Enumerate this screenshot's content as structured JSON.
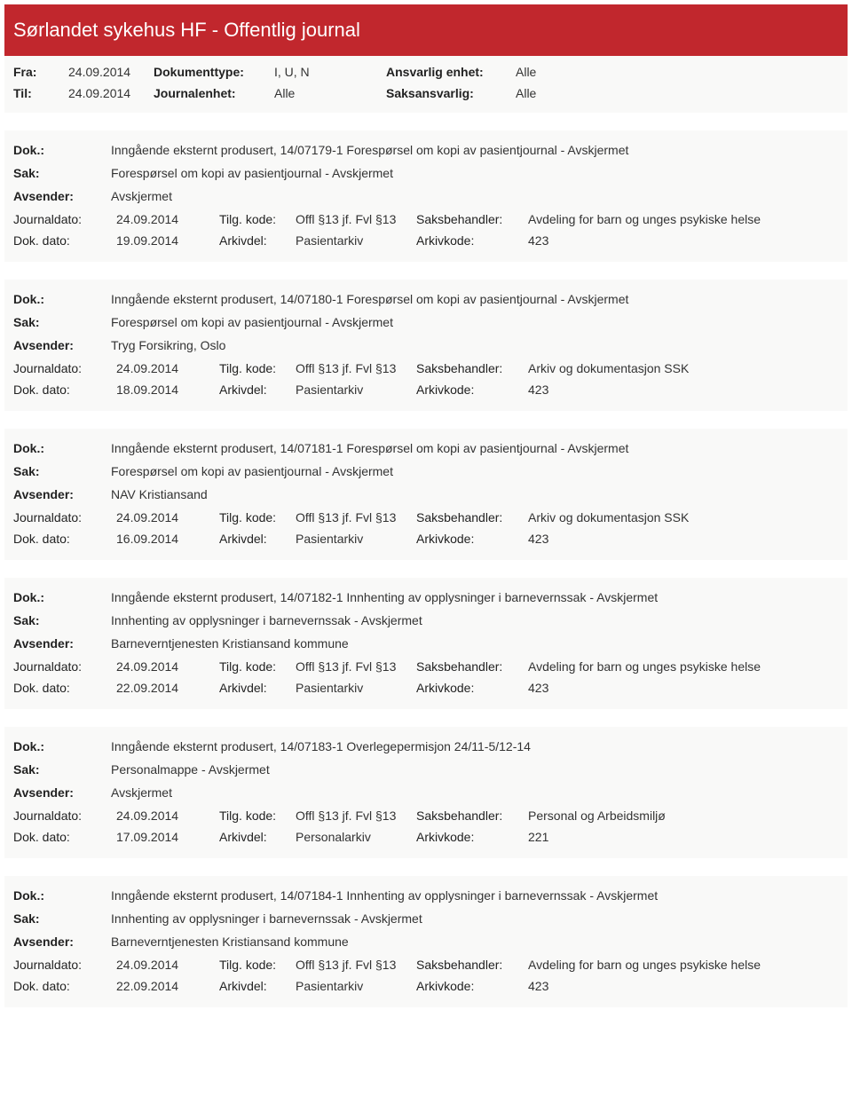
{
  "header": {
    "title": "Sørlandet sykehus HF - Offentlig journal"
  },
  "meta": {
    "fra_label": "Fra:",
    "fra_value": "24.09.2014",
    "til_label": "Til:",
    "til_value": "24.09.2014",
    "doktype_label": "Dokumenttype:",
    "doktype_value": "I, U, N",
    "journalenhet_label": "Journalenhet:",
    "journalenhet_value": "Alle",
    "ansvarlig_label": "Ansvarlig enhet:",
    "ansvarlig_value": "Alle",
    "saksansvarlig_label": "Saksansvarlig:",
    "saksansvarlig_value": "Alle"
  },
  "labels": {
    "dok": "Dok.:",
    "sak": "Sak:",
    "avsender": "Avsender:",
    "journaldato": "Journaldato:",
    "dokdato": "Dok. dato:",
    "tilgkode": "Tilg. kode:",
    "arkivdel": "Arkivdel:",
    "saksbehandler": "Saksbehandler:",
    "arkivkode": "Arkivkode:"
  },
  "entries": [
    {
      "dok": "Inngående eksternt produsert, 14/07179-1 Forespørsel om kopi av pasientjournal - Avskjermet",
      "sak": "Forespørsel om kopi av pasientjournal - Avskjermet",
      "avsender": "Avskjermet",
      "journaldato": "24.09.2014",
      "tilgkode": "Offl §13 jf. Fvl §13",
      "saksbehandler": "Avdeling for barn og unges psykiske helse",
      "dokdato": "19.09.2014",
      "arkivdel": "Pasientarkiv",
      "arkivkode": "423"
    },
    {
      "dok": "Inngående eksternt produsert, 14/07180-1 Forespørsel om kopi av pasientjournal - Avskjermet",
      "sak": "Forespørsel om kopi av pasientjournal - Avskjermet",
      "avsender": "Tryg Forsikring, Oslo",
      "journaldato": "24.09.2014",
      "tilgkode": "Offl §13 jf. Fvl §13",
      "saksbehandler": "Arkiv og dokumentasjon SSK",
      "dokdato": "18.09.2014",
      "arkivdel": "Pasientarkiv",
      "arkivkode": "423"
    },
    {
      "dok": "Inngående eksternt produsert, 14/07181-1 Forespørsel om kopi av pasientjournal - Avskjermet",
      "sak": "Forespørsel om kopi av pasientjournal - Avskjermet",
      "avsender": "NAV Kristiansand",
      "journaldato": "24.09.2014",
      "tilgkode": "Offl §13 jf. Fvl §13",
      "saksbehandler": "Arkiv og dokumentasjon SSK",
      "dokdato": "16.09.2014",
      "arkivdel": "Pasientarkiv",
      "arkivkode": "423"
    },
    {
      "dok": "Inngående eksternt produsert, 14/07182-1 Innhenting av opplysninger i barnevernssak - Avskjermet",
      "sak": "Innhenting av opplysninger i barnevernssak - Avskjermet",
      "avsender": "Barneverntjenesten Kristiansand kommune",
      "journaldato": "24.09.2014",
      "tilgkode": "Offl §13 jf. Fvl §13",
      "saksbehandler": "Avdeling for barn og unges psykiske helse",
      "dokdato": "22.09.2014",
      "arkivdel": "Pasientarkiv",
      "arkivkode": "423"
    },
    {
      "dok": "Inngående eksternt produsert, 14/07183-1 Overlegepermisjon 24/11-5/12-14",
      "sak": "Personalmappe - Avskjermet",
      "avsender": "Avskjermet",
      "journaldato": "24.09.2014",
      "tilgkode": "Offl §13 jf. Fvl §13",
      "saksbehandler": "Personal og Arbeidsmiljø",
      "dokdato": "17.09.2014",
      "arkivdel": "Personalarkiv",
      "arkivkode": "221"
    },
    {
      "dok": "Inngående eksternt produsert, 14/07184-1 Innhenting av opplysninger i barnevernssak - Avskjermet",
      "sak": "Innhenting av opplysninger i barnevernssak - Avskjermet",
      "avsender": "Barneverntjenesten Kristiansand kommune",
      "journaldato": "24.09.2014",
      "tilgkode": "Offl §13 jf. Fvl §13",
      "saksbehandler": "Avdeling for barn og unges psykiske helse",
      "dokdato": "22.09.2014",
      "arkivdel": "Pasientarkiv",
      "arkivkode": "423"
    }
  ]
}
